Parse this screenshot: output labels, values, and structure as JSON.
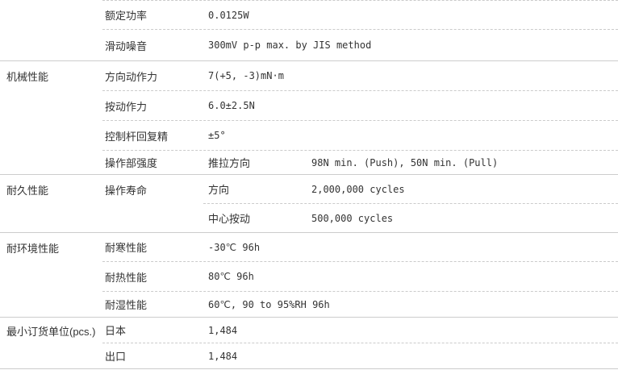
{
  "table": {
    "colors": {
      "background": "#ffffff",
      "text": "#333333",
      "line_solid": "#cccccc",
      "line_dashed": "#cbcbcb"
    },
    "sections": [
      {
        "category": "",
        "rows": [
          {
            "label": "额定功率",
            "value": "0.0125W"
          },
          {
            "label": "滑动噪音",
            "value": "300mV p-p max. by JIS method"
          }
        ]
      },
      {
        "category": "机械性能",
        "rows": [
          {
            "label": "方向动作力",
            "value": "7(+5, -3)mN·m"
          },
          {
            "label": "按动作力",
            "value": "6.0±2.5N"
          },
          {
            "label": "控制杆回复精",
            "value": "±5°"
          },
          {
            "label": "操作部强度",
            "sublabel": "推拉方向",
            "value": "98N min. (Push), 50N min. (Pull)"
          }
        ]
      },
      {
        "category": "耐久性能",
        "label": "操作寿命",
        "subrows": [
          {
            "label": "方向",
            "value": "2,000,000 cycles"
          },
          {
            "label": "中心按动",
            "value": "500,000 cycles"
          }
        ]
      },
      {
        "category": "耐环境性能",
        "rows": [
          {
            "label": "耐寒性能",
            "value": "-30℃ 96h"
          },
          {
            "label": "耐热性能",
            "value": "80℃ 96h"
          },
          {
            "label": "耐湿性能",
            "value": "60℃, 90 to 95%RH 96h"
          }
        ]
      },
      {
        "category": "最小订货单位(pcs.)",
        "rows": [
          {
            "label": "日本",
            "value": "1,484"
          },
          {
            "label": "出口",
            "value": "1,484"
          }
        ]
      }
    ]
  }
}
